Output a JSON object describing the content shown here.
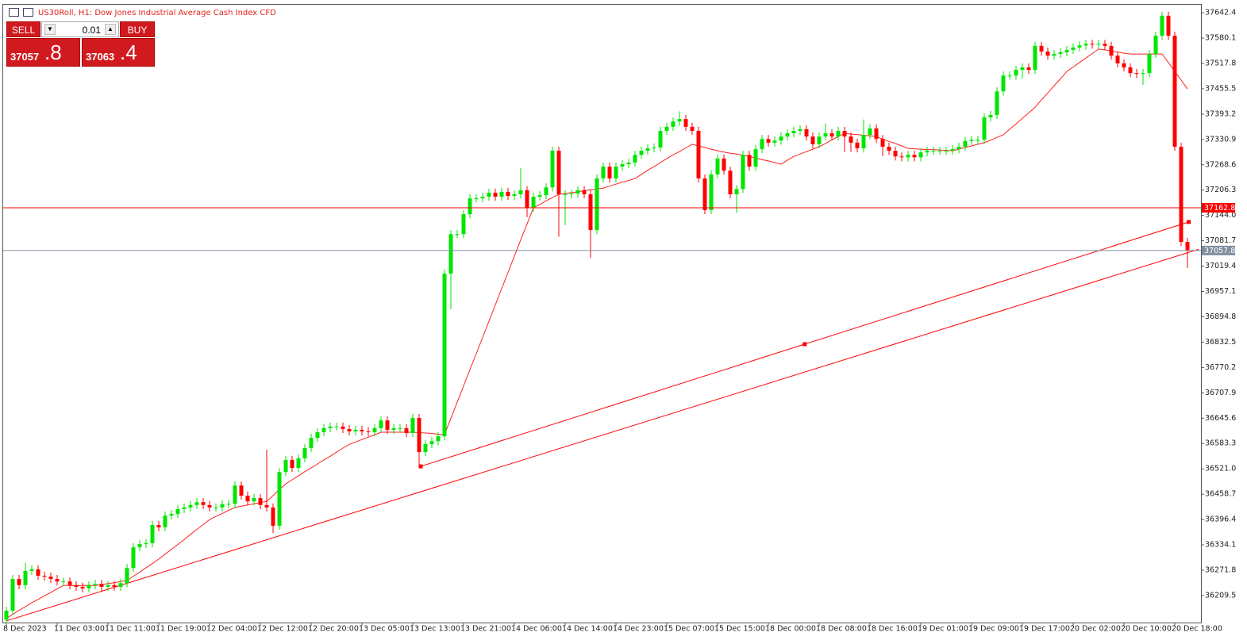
{
  "header": {
    "symbol_title": "US30Roll, H1:  Dow Jones Industrial Average Cash Index CFD"
  },
  "trade_panel": {
    "sell": "SELL",
    "buy": "BUY",
    "lot": "0.01",
    "bid_main": "37057",
    "bid_frac": ".8",
    "ask_main": "37063",
    "ask_frac": ".4"
  },
  "chart_data": {
    "type": "candlestick",
    "categories": [
      "8 Dec 2023",
      null,
      null,
      null,
      null,
      null,
      null,
      null,
      "11 Dec 03:00",
      null,
      null,
      null,
      null,
      null,
      null,
      null,
      "11 Dec 11:00",
      null,
      null,
      null,
      null,
      null,
      null,
      null,
      "11 Dec 19:00",
      null,
      null,
      null,
      null,
      null,
      null,
      null,
      "12 Dec 04:00",
      null,
      null,
      null,
      null,
      null,
      null,
      null,
      "12 Dec 12:00",
      null,
      null,
      null,
      null,
      null,
      null,
      null,
      "12 Dec 20:00",
      null,
      null,
      null,
      null,
      null,
      null,
      null,
      "13 Dec 05:00",
      null,
      null,
      null,
      null,
      null,
      null,
      null,
      "13 Dec 13:00",
      null,
      null,
      null,
      null,
      null,
      null,
      null,
      "13 Dec 21:00",
      null,
      null,
      null,
      null,
      null,
      null,
      null,
      "14 Dec 06:00",
      null,
      null,
      null,
      null,
      null,
      null,
      null,
      "14 Dec 14:00",
      null,
      null,
      null,
      null,
      null,
      null,
      null,
      "14 Dec 23:00",
      null,
      null,
      null,
      null,
      null,
      null,
      null,
      "15 Dec 07:00",
      null,
      null,
      null,
      null,
      null,
      null,
      null,
      "15 Dec 15:00",
      null,
      null,
      null,
      null,
      null,
      null,
      null,
      "18 Dec 00:00",
      null,
      null,
      null,
      null,
      null,
      null,
      null,
      "18 Dec 08:00",
      null,
      null,
      null,
      null,
      null,
      null,
      null,
      "18 Dec 16:00",
      null,
      null,
      null,
      null,
      null,
      null,
      null,
      "19 Dec 01:00",
      null,
      null,
      null,
      null,
      null,
      null,
      null,
      "19 Dec 09:00",
      null,
      null,
      null,
      null,
      null,
      null,
      null,
      "19 Dec 17:00",
      null,
      null,
      null,
      null,
      null,
      null,
      null,
      "20 Dec 02:00",
      null,
      null,
      null,
      null,
      null,
      null,
      null,
      "20 Dec 10:00",
      null,
      null,
      null,
      null,
      null,
      null,
      null,
      "20 Dec 18:00",
      null,
      null
    ],
    "open": [
      36150,
      36172,
      36250,
      36235,
      36270,
      36274,
      36258,
      36256,
      36250,
      36244,
      36244,
      36235,
      36231,
      36227,
      36235,
      36238,
      36231,
      36235,
      36231,
      36240,
      36277,
      36328,
      36336,
      36338,
      36383,
      36377,
      36406,
      36410,
      36422,
      36426,
      36432,
      36439,
      36432,
      36426,
      36426,
      36434,
      36435,
      36480,
      36455,
      36441,
      36449,
      36432,
      36426,
      36381,
      36513,
      36543,
      36523,
      36547,
      36572,
      36597,
      36611,
      36621,
      36625,
      36625,
      36619,
      36613,
      36617,
      36613,
      36611,
      36621,
      36640,
      36617,
      36621,
      36621,
      36609,
      36646,
      36562,
      36582,
      36589,
      36601,
      37001,
      37098,
      37098,
      37147,
      37186,
      37186,
      37190,
      37200,
      37190,
      37202,
      37192,
      37196,
      37206,
      37163,
      37190,
      37194,
      37213,
      37303,
      37196,
      37196,
      37198,
      37206,
      37196,
      37108,
      37235,
      37264,
      37235,
      37264,
      37270,
      37274,
      37293,
      37303,
      37309,
      37311,
      37352,
      37362,
      37375,
      37381,
      37362,
      37352,
      37235,
      37157,
      37245,
      37284,
      37254,
      37196,
      37209,
      37293,
      37264,
      37307,
      37332,
      37323,
      37328,
      37338,
      37346,
      37352,
      37356,
      37338,
      37319,
      37338,
      37346,
      37338,
      37352,
      37338,
      37323,
      37309,
      37342,
      37358,
      37332,
      37313,
      37303,
      37289,
      37287,
      37293,
      37287,
      37299,
      37303,
      37303,
      37303,
      37303,
      37307,
      37313,
      37327,
      37330,
      37330,
      37385,
      37391,
      37449,
      37488,
      37488,
      37502,
      37508,
      37502,
      37561,
      37547,
      37537,
      37541,
      37545,
      37551,
      37557,
      37562,
      37566,
      37564,
      37566,
      37561,
      37537,
      37518,
      37508,
      37494,
      37492,
      37494,
      37541,
      37586,
      37635,
      37586,
      37313,
      37079
    ],
    "high": [
      36182,
      36260,
      36260,
      36290,
      36284,
      36284,
      36268,
      36266,
      36260,
      36254,
      36254,
      36245,
      36241,
      36245,
      36248,
      36248,
      36245,
      36245,
      36250,
      36287,
      36338,
      36346,
      36348,
      36393,
      36393,
      36416,
      36420,
      36432,
      36436,
      36442,
      36449,
      36449,
      36442,
      36436,
      36444,
      36445,
      36490,
      36490,
      36465,
      36459,
      36459,
      36568,
      36436,
      36523,
      36553,
      36553,
      36557,
      36582,
      36607,
      36621,
      36631,
      36635,
      36635,
      36635,
      36629,
      36627,
      36627,
      36623,
      36631,
      36650,
      36650,
      36631,
      36631,
      36631,
      36656,
      36656,
      36592,
      36599,
      36611,
      37011,
      37108,
      37108,
      37157,
      37196,
      37196,
      37200,
      37210,
      37210,
      37212,
      37212,
      37206,
      37260,
      37216,
      37200,
      37204,
      37223,
      37313,
      37313,
      37206,
      37208,
      37216,
      37216,
      37206,
      37245,
      37274,
      37274,
      37274,
      37280,
      37284,
      37303,
      37313,
      37319,
      37321,
      37362,
      37372,
      37385,
      37400,
      37391,
      37372,
      37362,
      37245,
      37255,
      37294,
      37294,
      37264,
      37219,
      37303,
      37303,
      37317,
      37342,
      37342,
      37338,
      37348,
      37356,
      37362,
      37366,
      37366,
      37348,
      37348,
      37370,
      37356,
      37362,
      37362,
      37348,
      37333,
      37380,
      37368,
      37368,
      37342,
      37323,
      37313,
      37299,
      37303,
      37303,
      37309,
      37313,
      37313,
      37313,
      37313,
      37317,
      37323,
      37337,
      37340,
      37340,
      37395,
      37401,
      37459,
      37498,
      37498,
      37512,
      37518,
      37518,
      37571,
      37571,
      37557,
      37551,
      37555,
      37561,
      37567,
      37572,
      37576,
      37576,
      37576,
      37576,
      37571,
      37547,
      37528,
      37518,
      37504,
      37504,
      37551,
      37596,
      37645,
      37645,
      37596,
      37323,
      37089
    ],
    "low": [
      36140,
      36162,
      36225,
      36225,
      36260,
      36248,
      36246,
      36240,
      36234,
      36234,
      36225,
      36221,
      36217,
      36217,
      36225,
      36221,
      36221,
      36221,
      36221,
      36230,
      36267,
      36318,
      36326,
      36328,
      36367,
      36367,
      36396,
      36400,
      36412,
      36416,
      36422,
      36422,
      36416,
      36416,
      36416,
      36424,
      36425,
      36445,
      36431,
      36431,
      36422,
      36416,
      36363,
      36371,
      36503,
      36513,
      36513,
      36537,
      36562,
      36587,
      36601,
      36611,
      36615,
      36609,
      36603,
      36603,
      36603,
      36601,
      36601,
      36611,
      36607,
      36607,
      36611,
      36599,
      36599,
      36527,
      36552,
      36572,
      36579,
      36591,
      36913,
      37088,
      37088,
      37137,
      37176,
      37176,
      37180,
      37180,
      37180,
      37182,
      37182,
      37186,
      37140,
      37153,
      37180,
      37184,
      37203,
      37092,
      37120,
      37186,
      37188,
      37186,
      37040,
      37098,
      37225,
      37225,
      37225,
      37254,
      37260,
      37264,
      37283,
      37293,
      37299,
      37301,
      37342,
      37352,
      37365,
      37352,
      37342,
      37225,
      37147,
      37147,
      37235,
      37244,
      37186,
      37150,
      37199,
      37254,
      37254,
      37297,
      37313,
      37313,
      37318,
      37328,
      37336,
      37342,
      37328,
      37309,
      37309,
      37328,
      37328,
      37328,
      37300,
      37300,
      37299,
      37299,
      37332,
      37322,
      37290,
      37293,
      37279,
      37277,
      37277,
      37277,
      37277,
      37289,
      37293,
      37293,
      37293,
      37293,
      37297,
      37303,
      37317,
      37320,
      37320,
      37375,
      37381,
      37439,
      37478,
      37478,
      37480,
      37492,
      37492,
      37537,
      37527,
      37527,
      37531,
      37535,
      37541,
      37547,
      37552,
      37554,
      37554,
      37551,
      37527,
      37508,
      37498,
      37484,
      37482,
      37465,
      37484,
      37531,
      37576,
      37576,
      37303,
      37069,
      37015
    ],
    "close": [
      36172,
      36250,
      36235,
      36270,
      36274,
      36258,
      36256,
      36250,
      36244,
      36244,
      36235,
      36231,
      36227,
      36235,
      36238,
      36231,
      36235,
      36231,
      36240,
      36277,
      36328,
      36336,
      36338,
      36383,
      36377,
      36406,
      36410,
      36422,
      36426,
      36432,
      36439,
      36432,
      36426,
      36426,
      36434,
      36435,
      36480,
      36455,
      36441,
      36449,
      36432,
      36426,
      36381,
      36513,
      36543,
      36523,
      36547,
      36572,
      36597,
      36611,
      36621,
      36625,
      36625,
      36619,
      36613,
      36617,
      36613,
      36611,
      36621,
      36640,
      36617,
      36621,
      36621,
      36609,
      36646,
      36562,
      36582,
      36589,
      36601,
      37001,
      37098,
      37098,
      37147,
      37186,
      37186,
      37190,
      37200,
      37190,
      37202,
      37192,
      37196,
      37206,
      37163,
      37190,
      37194,
      37213,
      37303,
      37196,
      37196,
      37198,
      37206,
      37196,
      37108,
      37235,
      37264,
      37235,
      37264,
      37270,
      37274,
      37293,
      37303,
      37309,
      37311,
      37352,
      37362,
      37375,
      37381,
      37362,
      37352,
      37235,
      37157,
      37245,
      37284,
      37254,
      37196,
      37209,
      37293,
      37264,
      37307,
      37332,
      37323,
      37328,
      37338,
      37346,
      37352,
      37356,
      37338,
      37319,
      37338,
      37346,
      37338,
      37352,
      37338,
      37323,
      37309,
      37342,
      37358,
      37332,
      37313,
      37303,
      37289,
      37287,
      37293,
      37287,
      37299,
      37303,
      37303,
      37303,
      37303,
      37307,
      37313,
      37327,
      37330,
      37330,
      37385,
      37391,
      37449,
      37488,
      37488,
      37502,
      37508,
      37502,
      37561,
      37547,
      37537,
      37541,
      37545,
      37551,
      37557,
      37562,
      37566,
      37564,
      37566,
      37561,
      37537,
      37518,
      37508,
      37494,
      37492,
      37494,
      37541,
      37586,
      37635,
      37586,
      37313,
      37079,
      37057.8
    ],
    "up_color": "#00e600",
    "down_color": "#ff0000",
    "moving_average": {
      "color": "#ff2020",
      "values": [
        36153,
        36163,
        36173,
        36182,
        36192,
        36200,
        36209,
        36217,
        36226,
        36234,
        36234,
        36234,
        36234,
        36234,
        36234,
        36236,
        36239,
        36241,
        36244,
        36246,
        36257,
        36267,
        36278,
        36288,
        36299,
        36311,
        36323,
        36335,
        36347,
        36360,
        36372,
        36384,
        36396,
        36404,
        36411,
        36419,
        36426,
        36429,
        36432,
        36435,
        36438,
        36441,
        36455,
        36470,
        36484,
        36494,
        36504,
        36514,
        36523,
        36533,
        36543,
        36552,
        36562,
        36572,
        36581,
        36587,
        36593,
        36599,
        36605,
        36611,
        36611,
        36611,
        36611,
        36611,
        36611,
        36610,
        36609,
        36608,
        36606,
        36605,
        36645,
        36685,
        36725,
        36765,
        36804,
        36844,
        36884,
        36924,
        36964,
        37004,
        37044,
        37084,
        37123,
        37163,
        37171,
        37180,
        37188,
        37196,
        37198,
        37200,
        37202,
        37205,
        37207,
        37209,
        37211,
        37216,
        37221,
        37226,
        37230,
        37235,
        37245,
        37255,
        37264,
        37274,
        37284,
        37293,
        37301,
        37310,
        37319,
        37315,
        37311,
        37307,
        37303,
        37300,
        37297,
        37295,
        37292,
        37289,
        37285,
        37281,
        37278,
        37274,
        37270,
        37280,
        37289,
        37295,
        37301,
        37307,
        37313,
        37321,
        37330,
        37338,
        37346,
        37344,
        37343,
        37341,
        37340,
        37338,
        37332,
        37326,
        37321,
        37315,
        37309,
        37308,
        37307,
        37306,
        37306,
        37305,
        37304,
        37303,
        37307,
        37311,
        37315,
        37319,
        37323,
        37329,
        37336,
        37342,
        37356,
        37369,
        37383,
        37396,
        37410,
        37428,
        37445,
        37463,
        37480,
        37498,
        37509,
        37520,
        37531,
        37542,
        37553,
        37551,
        37548,
        37546,
        37543,
        37541,
        37541,
        37541,
        37541,
        37541,
        37541,
        37520,
        37498,
        37477,
        37455
      ]
    },
    "trendlines": [
      {
        "color": "#ff0000",
        "x": [
          65.25,
          186.2
        ],
        "values": [
          36527,
          37128
        ]
      },
      {
        "color": "#ff0000",
        "x": [
          0,
          187.8
        ],
        "values": [
          36147,
          37061
        ]
      }
    ],
    "price_lines": [
      {
        "value": 37162.8,
        "color": "#ff0000"
      },
      {
        "value": 37057.8,
        "color": "#7f8fa0"
      }
    ],
    "ylim": [
      36143,
      37664
    ],
    "yticks": [
      37642.4,
      37580.1,
      37517.8,
      37455.5,
      37393.2,
      37330.9,
      37268.6,
      37206.3,
      {
        "value": 37144,
        "label": "37144.0"
      },
      37081.7,
      37019.4,
      36957.1,
      36894.8,
      36832.5,
      36770.2,
      36707.9,
      36645.6,
      36583.3,
      {
        "value": 36521,
        "label": "36521.0"
      },
      36458.7,
      36396.4,
      36334.1,
      36271.8,
      36209.5
    ],
    "grid": false
  }
}
